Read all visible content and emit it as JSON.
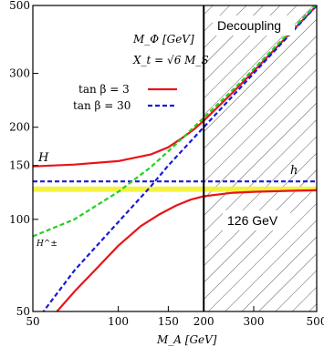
{
  "chart_data": {
    "type": "line",
    "xscale": "log",
    "yscale": "log",
    "xlim": [
      50,
      500
    ],
    "ylim": [
      50,
      500
    ],
    "xticks": [
      50,
      100,
      150,
      200,
      300,
      500
    ],
    "xtick_labels": [
      "50",
      "100",
      "150",
      "200",
      "300",
      "500"
    ],
    "yticks": [
      50,
      100,
      150,
      200,
      300,
      500
    ],
    "ytick_labels": [
      "50",
      "100",
      "150",
      "200",
      "300",
      "500"
    ],
    "xlabel": "M_A [GeV]",
    "ylabel": "",
    "title": "",
    "grid": false,
    "annotations": {
      "mass_label": "M_Φ [GeV]",
      "xt_label": "X_t = √6 M_S",
      "decoupling": "Decoupling",
      "higgs_126": "126 GeV",
      "H": "H",
      "h": "h",
      "H_pm": "H^±"
    },
    "legend": {
      "position": "top-left",
      "entries": [
        {
          "label": "tan β = 3",
          "color": "#e8141a",
          "style": "solid"
        },
        {
          "label": "tan β = 30",
          "color": "#1a1ad6",
          "style": "dashed"
        }
      ]
    },
    "decoupling_region_start": 200,
    "band_126": {
      "from": 123,
      "to": 128,
      "color": "#f2f22a"
    },
    "series": [
      {
        "name": "H (tan β = 3)",
        "color": "#e8141a",
        "style": "solid",
        "x": [
          50,
          70,
          100,
          130,
          150,
          170,
          185,
          200,
          250,
          300,
          400,
          500
        ],
        "y": [
          149,
          151,
          155,
          163,
          172,
          186,
          197,
          210,
          257,
          305,
          403,
          500
        ]
      },
      {
        "name": "h (tan β = 3)",
        "color": "#e8141a",
        "style": "solid",
        "x": [
          55,
          70,
          85,
          100,
          120,
          140,
          160,
          180,
          200,
          250,
          300,
          400,
          500
        ],
        "y": [
          45,
          58,
          70,
          82,
          95,
          104,
          111,
          116,
          119,
          122,
          123,
          124,
          124.5
        ]
      },
      {
        "name": "H (tan β = 30)",
        "color": "#1a1ad6",
        "style": "dashed",
        "x": [
          50,
          70,
          90,
          110,
          130,
          150,
          170,
          200,
          250,
          300,
          400,
          500
        ],
        "y": [
          45,
          68,
          88,
          108,
          128,
          150,
          170,
          200,
          250,
          300,
          400,
          500
        ]
      },
      {
        "name": "h (tan β = 30)",
        "color": "#1a1ad6",
        "style": "dashed",
        "x": [
          50,
          100,
          200,
          300,
          500
        ],
        "y": [
          133,
          133,
          133,
          133,
          133
        ]
      },
      {
        "name": "H± (tan β = 3)",
        "color": "#21d11e",
        "style": "dashed",
        "x": [
          50,
          70,
          100,
          130,
          150,
          170,
          200,
          250,
          300,
          400,
          500
        ],
        "y": [
          88,
          100,
          123,
          148,
          167,
          186,
          215,
          262,
          310,
          408,
          505
        ]
      }
    ]
  }
}
